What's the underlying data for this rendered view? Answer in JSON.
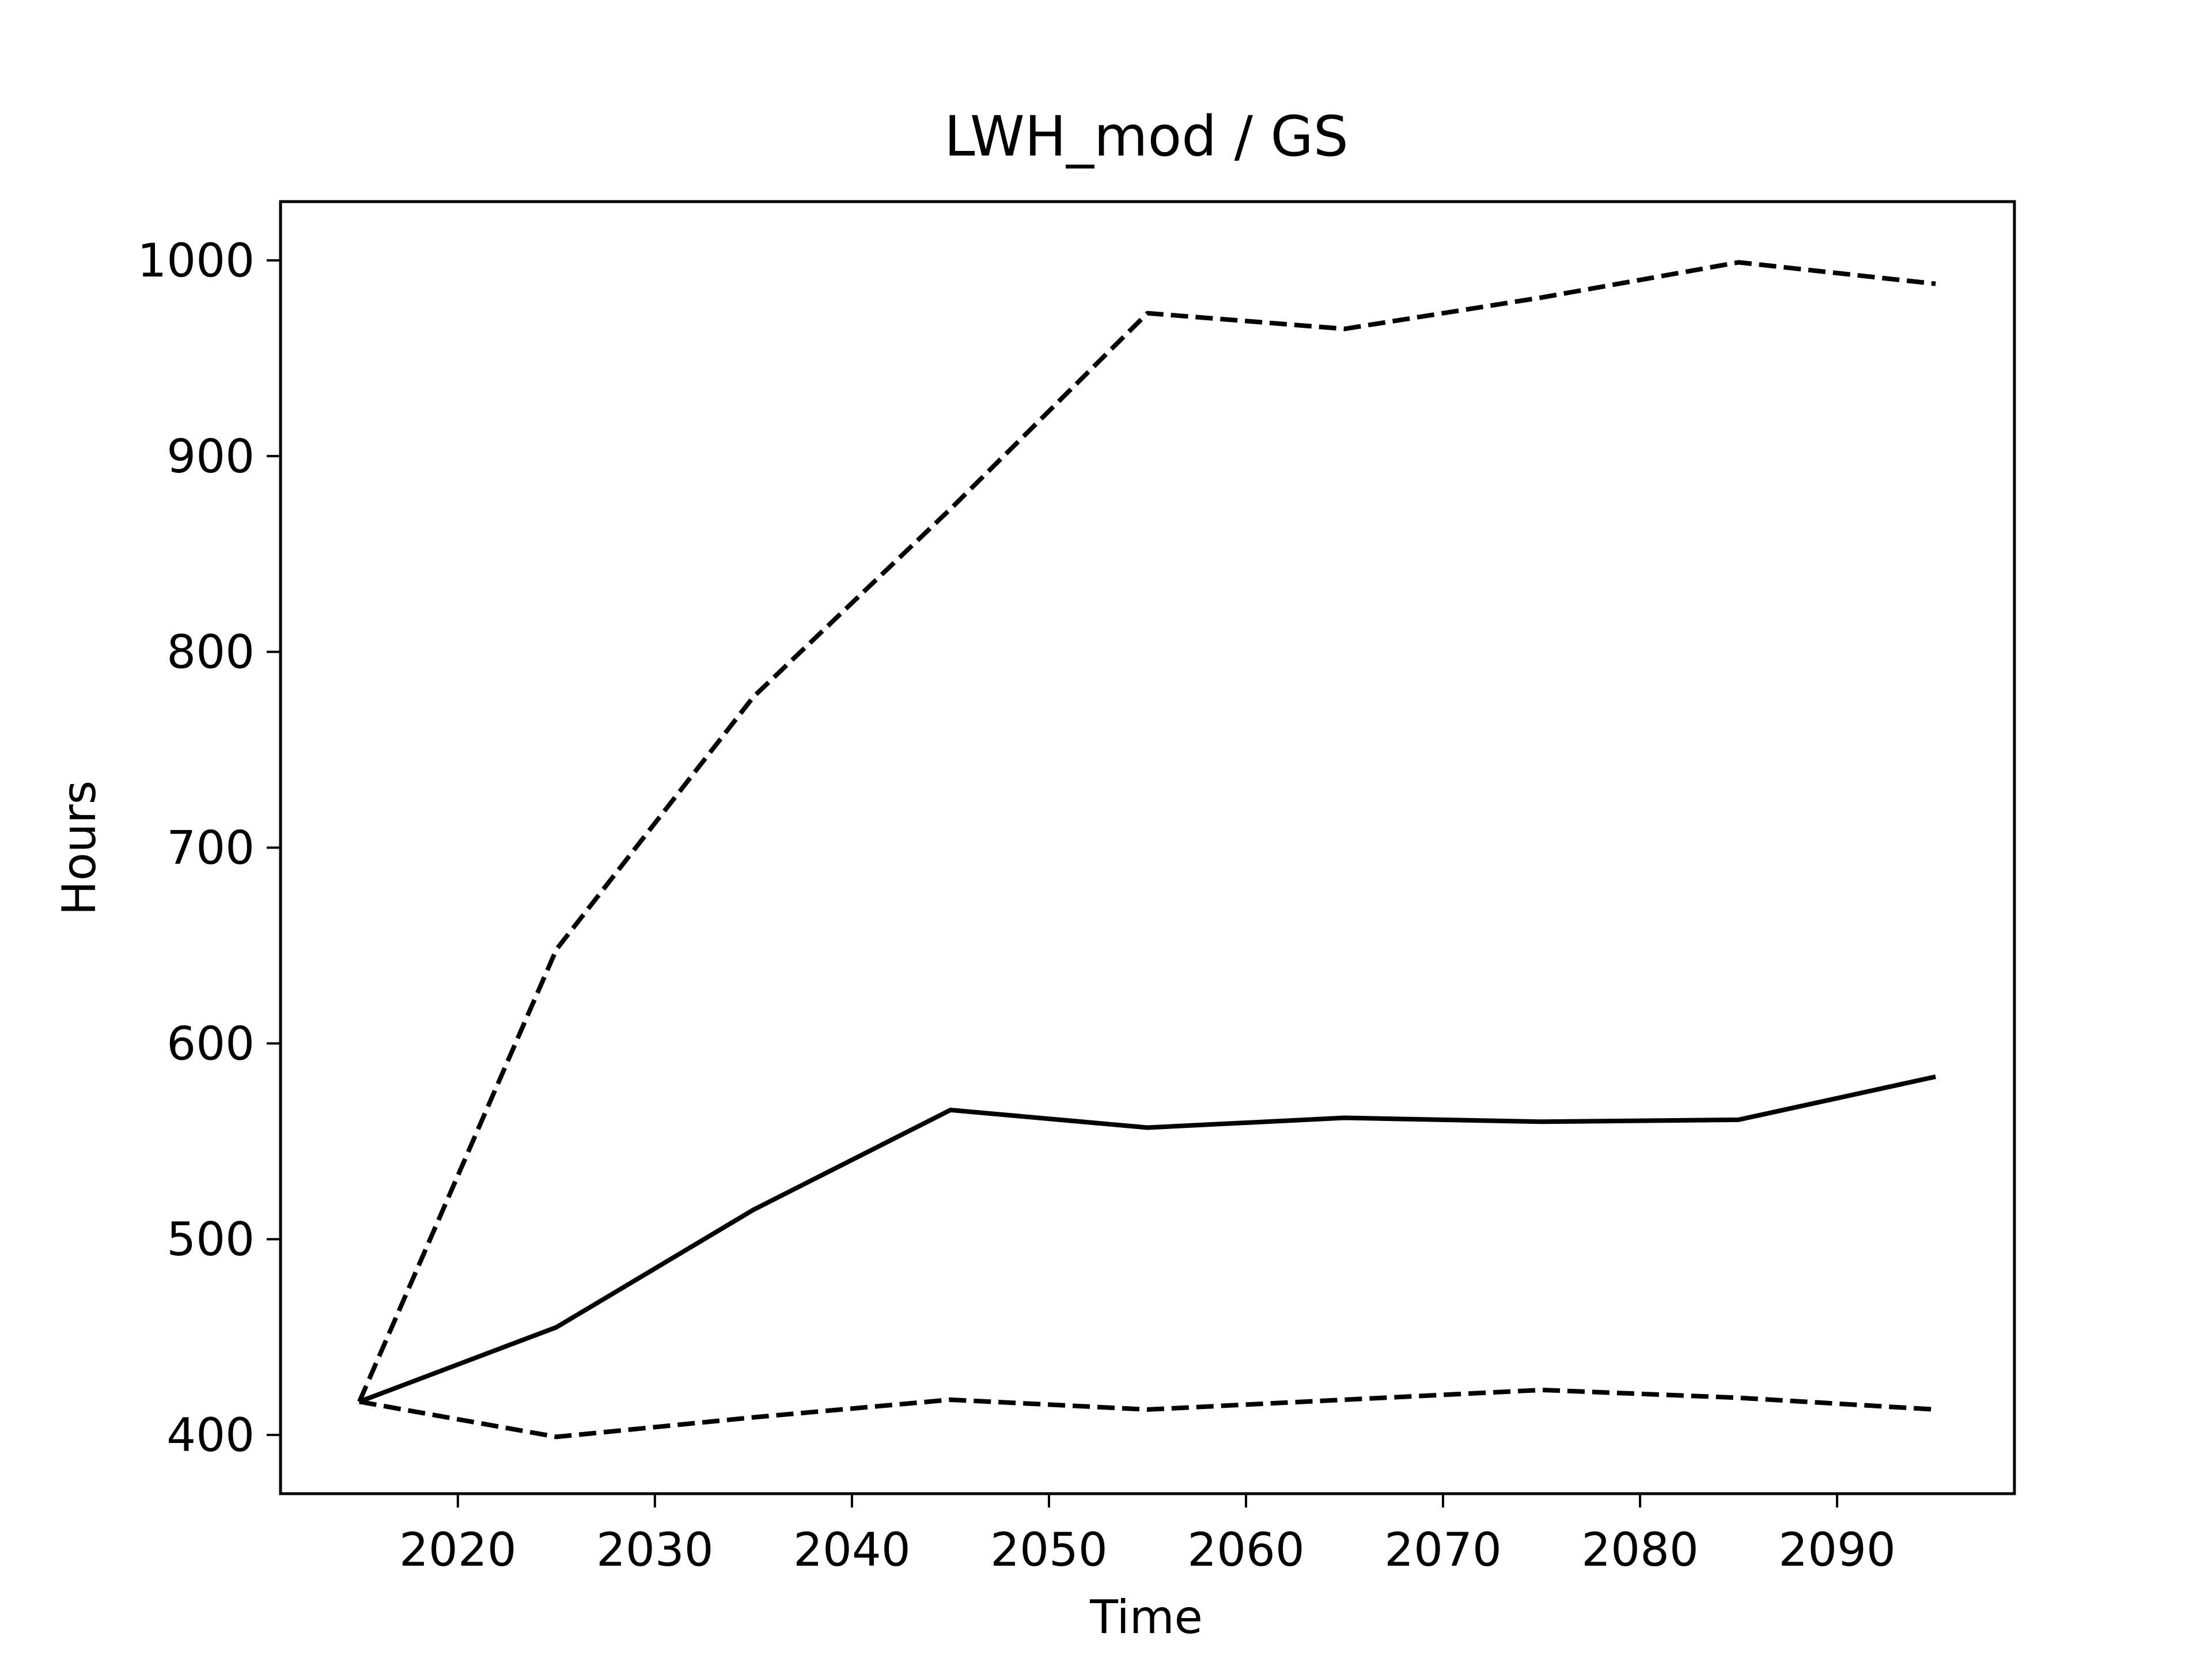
{
  "chart_data": {
    "type": "line",
    "title": "LWH_mod / GS",
    "xlabel": "Time",
    "ylabel": "Hours",
    "xlim": [
      2011,
      2099
    ],
    "ylim": [
      370,
      1030
    ],
    "xticks": [
      2020,
      2030,
      2040,
      2050,
      2060,
      2070,
      2080,
      2090
    ],
    "yticks": [
      400,
      500,
      600,
      700,
      800,
      900,
      1000
    ],
    "grid": false,
    "legend": "none",
    "x": [
      2015,
      2025,
      2035,
      2045,
      2055,
      2065,
      2075,
      2085,
      2095
    ],
    "series": [
      {
        "style": "solid",
        "color": "#000000",
        "values": [
          417,
          455,
          515,
          566,
          557,
          562,
          560,
          561,
          583
        ]
      },
      {
        "style": "dashed",
        "color": "#000000",
        "values": [
          417,
          648,
          777,
          873,
          973,
          965,
          981,
          999,
          988
        ]
      },
      {
        "style": "dashed",
        "color": "#000000",
        "values": [
          417,
          399,
          409,
          418,
          413,
          418,
          423,
          419,
          413
        ]
      }
    ]
  }
}
